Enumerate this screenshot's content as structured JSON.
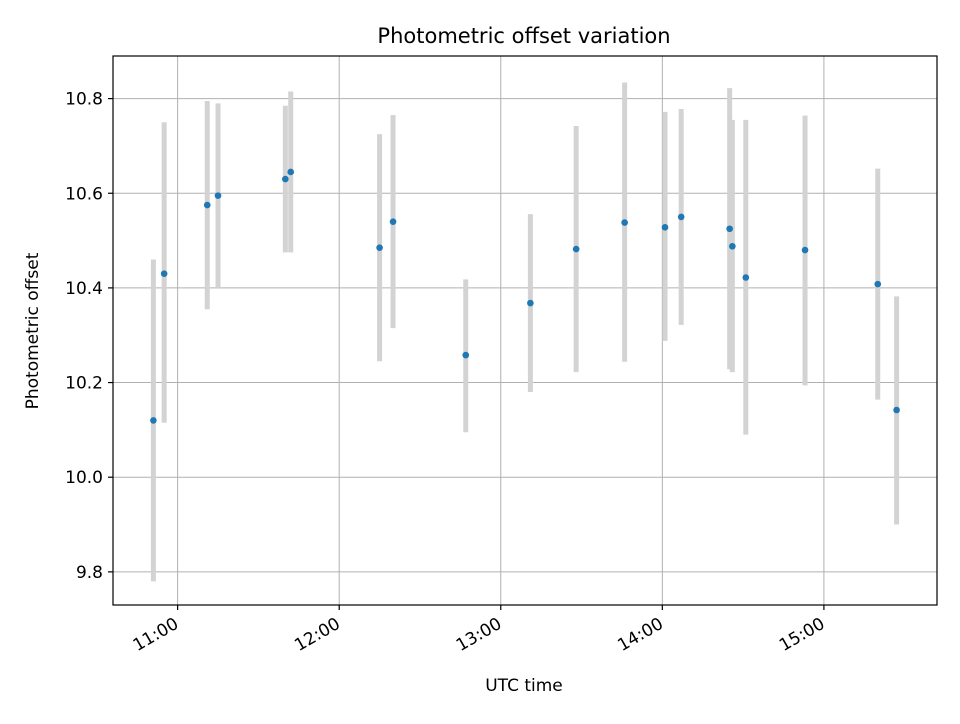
{
  "chart_data": {
    "type": "scatter",
    "title": "Photometric offset variation",
    "xlabel": "UTC time",
    "ylabel": "Photometric offset",
    "x_unit": "hours UTC",
    "xlim": [
      "10:36",
      "15:42"
    ],
    "ylim": [
      9.73,
      10.89
    ],
    "xticks": [
      {
        "value": "11:00",
        "label": "11:00"
      },
      {
        "value": "12:00",
        "label": "12:00"
      },
      {
        "value": "13:00",
        "label": "13:00"
      },
      {
        "value": "14:00",
        "label": "14:00"
      },
      {
        "value": "15:00",
        "label": "15:00"
      }
    ],
    "yticks": [
      {
        "value": 9.8,
        "label": "9.8"
      },
      {
        "value": 10.0,
        "label": "10.0"
      },
      {
        "value": 10.2,
        "label": "10.2"
      },
      {
        "value": 10.4,
        "label": "10.4"
      },
      {
        "value": 10.6,
        "label": "10.6"
      },
      {
        "value": 10.8,
        "label": "10.8"
      }
    ],
    "grid": true,
    "point_color": "#1f77b4",
    "errorbar_color": "#d3d3d3",
    "points": [
      {
        "x": "10:51",
        "y": 10.12,
        "low": 9.78,
        "high": 10.46
      },
      {
        "x": "10:55",
        "y": 10.43,
        "low": 10.115,
        "high": 10.75
      },
      {
        "x": "11:11",
        "y": 10.575,
        "low": 10.355,
        "high": 10.795
      },
      {
        "x": "11:15",
        "y": 10.595,
        "low": 10.4,
        "high": 10.79
      },
      {
        "x": "11:40",
        "y": 10.63,
        "low": 10.475,
        "high": 10.785
      },
      {
        "x": "11:42",
        "y": 10.645,
        "low": 10.475,
        "high": 10.815
      },
      {
        "x": "12:15",
        "y": 10.485,
        "low": 10.245,
        "high": 10.725
      },
      {
        "x": "12:20",
        "y": 10.54,
        "low": 10.315,
        "high": 10.765
      },
      {
        "x": "12:47",
        "y": 10.258,
        "low": 10.095,
        "high": 10.418
      },
      {
        "x": "13:11",
        "y": 10.368,
        "low": 10.18,
        "high": 10.556
      },
      {
        "x": "13:28",
        "y": 10.482,
        "low": 10.222,
        "high": 10.742
      },
      {
        "x": "13:46",
        "y": 10.538,
        "low": 10.244,
        "high": 10.834
      },
      {
        "x": "14:01",
        "y": 10.528,
        "low": 10.288,
        "high": 10.772
      },
      {
        "x": "14:07",
        "y": 10.55,
        "low": 10.322,
        "high": 10.778
      },
      {
        "x": "14:25",
        "y": 10.525,
        "low": 10.228,
        "high": 10.822
      },
      {
        "x": "14:26",
        "y": 10.488,
        "low": 10.222,
        "high": 10.755
      },
      {
        "x": "14:31",
        "y": 10.422,
        "low": 10.09,
        "high": 10.755
      },
      {
        "x": "14:53",
        "y": 10.48,
        "low": 10.194,
        "high": 10.764
      },
      {
        "x": "15:20",
        "y": 10.408,
        "low": 10.164,
        "high": 10.652
      },
      {
        "x": "15:27",
        "y": 10.142,
        "low": 9.9,
        "high": 10.382
      }
    ]
  }
}
